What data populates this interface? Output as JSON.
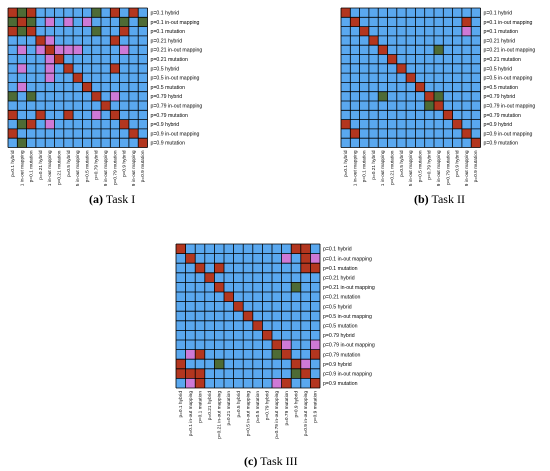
{
  "labels": [
    "p=0.1 hybrid",
    "p=0.1 in-out mapping",
    "p=0.1 mutation",
    "p=0.21 hybrid",
    "p=0.21 in-out mapping",
    "p=0.21 mutation",
    "p=0.5 hybrid",
    "p=0.5 in-out mapping",
    "p=0.5 mutation",
    "p=0.79 hybrid",
    "p=0.79 in-out mapping",
    "p=0.79 mutation",
    "p=0.9 hybrid",
    "p=0.9 in-out mapping",
    "p=0.9 mutation"
  ],
  "colors": {
    "grid_line": "#000000",
    "nonsignificant": "#5aa8ef",
    "identical": "#b3361f",
    "significant_better": "#ce79d6",
    "significant_worse": "#4e6b35"
  },
  "panels": [
    {
      "id": "task1",
      "caption_tag": "(a)",
      "caption_text": "Task I",
      "cells": [
        [
          1,
          3,
          1,
          0,
          0,
          0,
          0,
          0,
          0,
          3,
          0,
          1,
          0,
          1,
          0
        ],
        [
          3,
          1,
          3,
          0,
          2,
          0,
          2,
          0,
          2,
          0,
          0,
          0,
          3,
          0,
          3
        ],
        [
          1,
          3,
          1,
          0,
          0,
          0,
          0,
          0,
          0,
          3,
          0,
          0,
          1,
          0,
          0
        ],
        [
          0,
          0,
          0,
          1,
          2,
          0,
          0,
          0,
          0,
          0,
          0,
          1,
          0,
          0,
          0
        ],
        [
          0,
          2,
          0,
          2,
          1,
          2,
          2,
          2,
          0,
          0,
          0,
          0,
          2,
          0,
          0
        ],
        [
          0,
          0,
          0,
          0,
          2,
          1,
          0,
          0,
          0,
          0,
          0,
          0,
          0,
          0,
          0
        ],
        [
          0,
          2,
          0,
          0,
          2,
          0,
          1,
          0,
          0,
          0,
          0,
          1,
          0,
          0,
          0
        ],
        [
          0,
          0,
          0,
          0,
          2,
          0,
          0,
          1,
          0,
          0,
          0,
          0,
          0,
          0,
          0
        ],
        [
          0,
          2,
          0,
          0,
          0,
          0,
          0,
          0,
          1,
          0,
          0,
          0,
          0,
          0,
          0
        ],
        [
          3,
          0,
          3,
          0,
          0,
          0,
          0,
          0,
          0,
          1,
          0,
          2,
          0,
          0,
          0
        ],
        [
          0,
          0,
          0,
          0,
          0,
          0,
          0,
          0,
          0,
          0,
          1,
          0,
          0,
          0,
          0
        ],
        [
          1,
          0,
          0,
          1,
          0,
          0,
          1,
          0,
          0,
          2,
          0,
          1,
          0,
          0,
          0
        ],
        [
          0,
          3,
          1,
          0,
          2,
          0,
          0,
          0,
          0,
          0,
          0,
          0,
          1,
          0,
          0
        ],
        [
          1,
          0,
          0,
          0,
          0,
          0,
          0,
          0,
          0,
          0,
          0,
          0,
          0,
          1,
          0
        ],
        [
          0,
          3,
          0,
          0,
          0,
          0,
          0,
          0,
          0,
          0,
          0,
          0,
          0,
          0,
          1
        ]
      ]
    },
    {
      "id": "task2",
      "caption_tag": "(b)",
      "caption_text": "Task II",
      "cells": [
        [
          1,
          0,
          0,
          0,
          0,
          0,
          0,
          0,
          0,
          0,
          0,
          0,
          0,
          0,
          0
        ],
        [
          0,
          1,
          0,
          0,
          0,
          0,
          0,
          0,
          0,
          0,
          0,
          0,
          0,
          1,
          0
        ],
        [
          0,
          0,
          1,
          0,
          0,
          0,
          0,
          0,
          0,
          0,
          0,
          0,
          0,
          2,
          0
        ],
        [
          0,
          0,
          0,
          1,
          0,
          0,
          0,
          0,
          0,
          0,
          0,
          0,
          0,
          0,
          0
        ],
        [
          0,
          0,
          0,
          0,
          1,
          0,
          0,
          0,
          0,
          0,
          3,
          0,
          0,
          0,
          0
        ],
        [
          0,
          0,
          0,
          0,
          0,
          1,
          0,
          0,
          0,
          0,
          0,
          0,
          0,
          0,
          0
        ],
        [
          0,
          0,
          0,
          0,
          0,
          0,
          1,
          0,
          0,
          0,
          0,
          0,
          0,
          0,
          0
        ],
        [
          0,
          0,
          0,
          0,
          0,
          0,
          0,
          1,
          0,
          0,
          0,
          0,
          0,
          0,
          0
        ],
        [
          0,
          0,
          0,
          0,
          0,
          0,
          0,
          0,
          1,
          0,
          0,
          0,
          0,
          0,
          0
        ],
        [
          0,
          0,
          0,
          0,
          3,
          0,
          0,
          0,
          0,
          1,
          3,
          0,
          0,
          0,
          0
        ],
        [
          0,
          0,
          0,
          0,
          0,
          0,
          0,
          0,
          0,
          3,
          1,
          0,
          0,
          0,
          0
        ],
        [
          0,
          0,
          0,
          0,
          0,
          0,
          0,
          0,
          0,
          0,
          0,
          1,
          0,
          0,
          0
        ],
        [
          1,
          0,
          0,
          0,
          0,
          0,
          0,
          0,
          0,
          0,
          0,
          0,
          1,
          0,
          0
        ],
        [
          0,
          1,
          0,
          0,
          0,
          0,
          0,
          0,
          0,
          0,
          0,
          0,
          0,
          1,
          0
        ],
        [
          0,
          0,
          0,
          0,
          0,
          0,
          0,
          0,
          0,
          0,
          0,
          0,
          0,
          0,
          1
        ]
      ]
    },
    {
      "id": "task3",
      "caption_tag": "(c)",
      "caption_text": "Task III",
      "cells": [
        [
          1,
          0,
          0,
          0,
          0,
          0,
          0,
          0,
          0,
          0,
          0,
          0,
          1,
          1,
          0
        ],
        [
          0,
          1,
          0,
          0,
          0,
          0,
          0,
          0,
          0,
          0,
          0,
          2,
          0,
          1,
          2
        ],
        [
          0,
          0,
          1,
          0,
          1,
          0,
          0,
          0,
          0,
          0,
          0,
          0,
          0,
          1,
          1
        ],
        [
          0,
          0,
          0,
          1,
          0,
          0,
          0,
          0,
          0,
          0,
          0,
          0,
          0,
          0,
          0
        ],
        [
          0,
          0,
          0,
          0,
          1,
          0,
          0,
          0,
          0,
          0,
          0,
          0,
          3,
          0,
          0
        ],
        [
          0,
          0,
          0,
          0,
          0,
          1,
          0,
          0,
          0,
          0,
          0,
          0,
          0,
          0,
          0
        ],
        [
          0,
          0,
          0,
          0,
          0,
          0,
          1,
          0,
          0,
          0,
          0,
          0,
          0,
          0,
          0
        ],
        [
          0,
          0,
          0,
          0,
          0,
          0,
          0,
          1,
          0,
          0,
          0,
          0,
          0,
          0,
          0
        ],
        [
          0,
          0,
          0,
          0,
          0,
          0,
          0,
          0,
          1,
          0,
          0,
          0,
          0,
          0,
          0
        ],
        [
          0,
          0,
          0,
          0,
          0,
          0,
          0,
          0,
          0,
          1,
          0,
          0,
          0,
          0,
          0
        ],
        [
          0,
          0,
          0,
          0,
          0,
          0,
          0,
          0,
          0,
          0,
          1,
          2,
          0,
          0,
          2
        ],
        [
          0,
          2,
          1,
          0,
          0,
          0,
          0,
          0,
          0,
          0,
          3,
          1,
          0,
          0,
          1
        ],
        [
          1,
          0,
          0,
          0,
          3,
          0,
          0,
          0,
          0,
          0,
          0,
          0,
          1,
          2,
          0
        ],
        [
          1,
          1,
          1,
          0,
          0,
          0,
          0,
          0,
          0,
          0,
          0,
          0,
          3,
          1,
          0
        ],
        [
          0,
          2,
          1,
          0,
          0,
          0,
          0,
          0,
          0,
          0,
          2,
          1,
          0,
          0,
          1
        ]
      ]
    }
  ]
}
